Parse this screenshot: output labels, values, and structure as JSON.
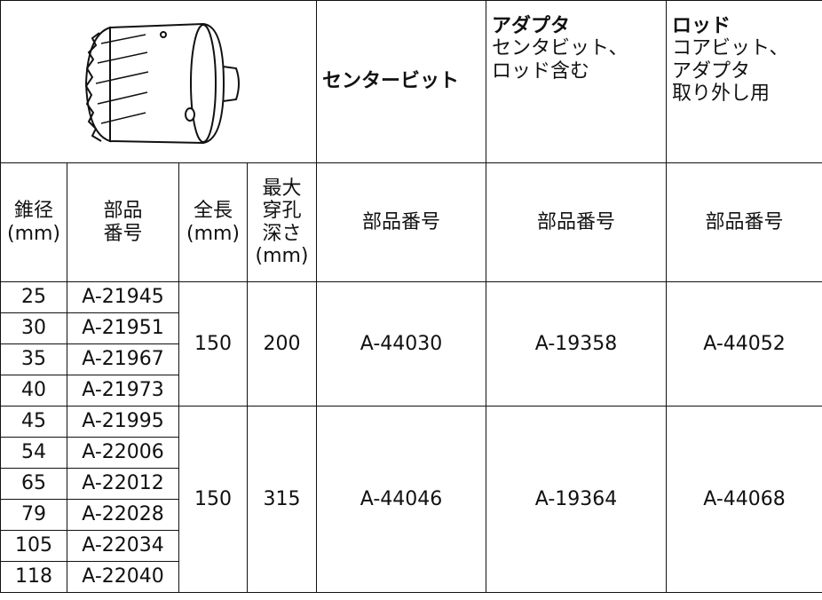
{
  "header": {
    "center_bit": "センタービット",
    "adapter": {
      "title": "アダプタ",
      "lines": [
        "センタビット、",
        "ロッド含む"
      ]
    },
    "rod": {
      "title": "ロッド",
      "lines": [
        "コアビット、",
        "アダプタ",
        "取り外し用"
      ]
    }
  },
  "column_headers": [
    [
      "錐径",
      "(mm)"
    ],
    [
      "部品",
      "番号"
    ],
    [
      "全長",
      "(mm)"
    ],
    [
      "最大",
      "穿孔",
      "深さ",
      "(mm)"
    ],
    [
      "部品番号"
    ],
    [
      "部品番号"
    ],
    [
      "部品番号"
    ]
  ],
  "groups": [
    {
      "length": 150,
      "depth": 200,
      "center_bit": "A-44030",
      "adapter": "A-19358",
      "rod": "A-44052",
      "rows": [
        [
          25,
          "A-21945"
        ],
        [
          30,
          "A-21951"
        ],
        [
          35,
          "A-21967"
        ],
        [
          40,
          "A-21973"
        ]
      ]
    },
    {
      "length": 150,
      "depth": 315,
      "center_bit": "A-44046",
      "adapter": "A-19364",
      "rod": "A-44068",
      "rows": [
        [
          45,
          "A-21995"
        ],
        [
          54,
          "A-22006"
        ],
        [
          65,
          "A-22012"
        ],
        [
          79,
          "A-22028"
        ],
        [
          105,
          "A-22034"
        ],
        [
          118,
          "A-22040"
        ]
      ]
    }
  ]
}
